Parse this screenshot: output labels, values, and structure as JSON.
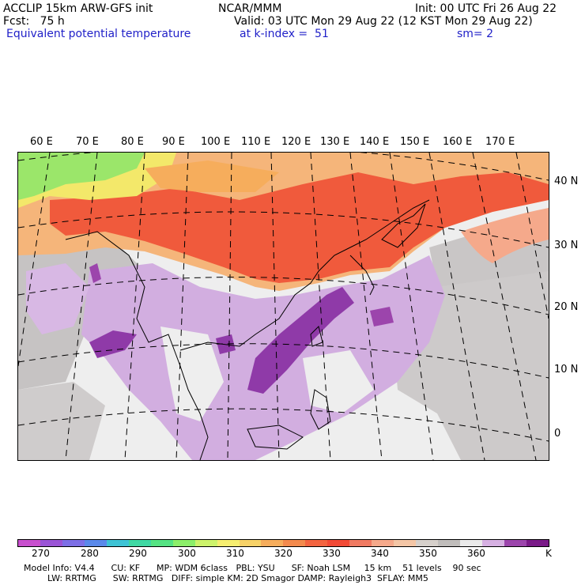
{
  "header": {
    "model_title": "ACCLIP 15km ARW-GFS init",
    "institution": "NCAR/MMM",
    "init_time": "Init: 00 UTC Fri 26 Aug 22",
    "forecast": "Fcst:   75 h",
    "valid_time": "Valid: 03 UTC Mon 29 Aug 22 (12 KST Mon 29 Aug 22)",
    "field_name": "Equivalent potential temperature",
    "k_index": "at k-index =  51",
    "smoothing": "sm= 2"
  },
  "map": {
    "longitude_labels": [
      "60 E",
      "70 E",
      "80 E",
      "90 E",
      "100 E",
      "110 E",
      "120 E",
      "130 E",
      "140 E",
      "150 E",
      "160 E",
      "170 E"
    ],
    "latitude_labels": [
      "40 N",
      "30 N",
      "20 N",
      "10 N",
      "0"
    ],
    "colors": {
      "north_band_outer": "#f5b57a",
      "north_band_inner": "#f05a3c",
      "green_patch": "#9be66a",
      "yellow_patch": "#f3e86a",
      "grey_region": "#c6c3c3",
      "light_region": "#eeeeee",
      "lavender": "#d2aee0",
      "purple": "#8f3aa8",
      "land_outline": "#000000",
      "graticule": "#000000"
    }
  },
  "colorbar": {
    "colors": [
      "#c84fce",
      "#9a54d6",
      "#7d6fe6",
      "#5a89ea",
      "#3ec3d5",
      "#3fd8a3",
      "#55e383",
      "#8cef6a",
      "#cdf36b",
      "#f6ee70",
      "#f7d268",
      "#f6ad5c",
      "#f38a4d",
      "#f36440",
      "#f24a36",
      "#f07a62",
      "#f5a98b",
      "#f4c6a6",
      "#d6d0cb",
      "#c0bdbb",
      "#eaeaea",
      "#d6b0e2",
      "#9c45ac",
      "#7a1a88"
    ],
    "tick_labels": [
      "270",
      "280",
      "290",
      "300",
      "310",
      "320",
      "330",
      "340",
      "350",
      "360",
      "K"
    ]
  },
  "footer": {
    "line1": "Model Info: V4.4      CU: KF      MP: WDM 6class   PBL: YSU      SF: Noah LSM     15 km    51 levels    90 sec",
    "line2": "LW: RRTMG      SW: RRTMG   DIFF: simple KM: 2D Smagor DAMP: Rayleigh3  SFLAY: MM5"
  }
}
